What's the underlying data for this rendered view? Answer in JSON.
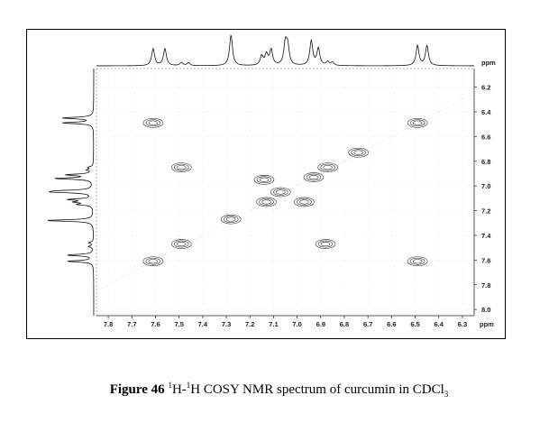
{
  "chart_data": {
    "type": "scatter",
    "subtype": "2D COSY contour plot",
    "x_unit": "ppm",
    "y_unit": "ppm",
    "xlim": [
      7.85,
      6.25
    ],
    "ylim": [
      6.05,
      8.05
    ],
    "x_ticks": [
      "7.8",
      "7.7",
      "7.6",
      "7.5",
      "7.4",
      "7.3",
      "7.2",
      "7.1",
      "7.0",
      "6.9",
      "6.8",
      "6.7",
      "6.6",
      "6.5",
      "6.4",
      "6.3"
    ],
    "y_ticks": [
      "6.2",
      "6.4",
      "6.6",
      "6.8",
      "7.0",
      "7.2",
      "7.4",
      "7.6",
      "7.8",
      "8.0"
    ],
    "cross_peaks": [
      {
        "x": 7.61,
        "y": 6.49
      },
      {
        "x": 6.49,
        "y": 6.49
      },
      {
        "x": 7.49,
        "y": 6.85
      },
      {
        "x": 6.74,
        "y": 6.73
      },
      {
        "x": 6.87,
        "y": 6.85
      },
      {
        "x": 6.93,
        "y": 6.93
      },
      {
        "x": 7.14,
        "y": 6.95
      },
      {
        "x": 7.07,
        "y": 7.05
      },
      {
        "x": 7.13,
        "y": 7.13
      },
      {
        "x": 6.97,
        "y": 7.13
      },
      {
        "x": 7.28,
        "y": 7.27
      },
      {
        "x": 7.49,
        "y": 7.47
      },
      {
        "x": 6.88,
        "y": 7.47
      },
      {
        "x": 7.61,
        "y": 7.61
      },
      {
        "x": 6.49,
        "y": 7.61
      }
    ],
    "projection_peaks": [
      {
        "ppm": 7.61,
        "intensity": 0.55
      },
      {
        "ppm": 7.56,
        "intensity": 0.55
      },
      {
        "ppm": 7.49,
        "intensity": 0.1
      },
      {
        "ppm": 7.46,
        "intensity": 0.1
      },
      {
        "ppm": 7.28,
        "intensity": 1.0
      },
      {
        "ppm": 7.15,
        "intensity": 0.3
      },
      {
        "ppm": 7.13,
        "intensity": 0.35
      },
      {
        "ppm": 7.11,
        "intensity": 0.5
      },
      {
        "ppm": 7.05,
        "intensity": 0.7
      },
      {
        "ppm": 7.04,
        "intensity": 0.6
      },
      {
        "ppm": 6.94,
        "intensity": 0.8
      },
      {
        "ppm": 6.91,
        "intensity": 0.55
      },
      {
        "ppm": 6.87,
        "intensity": 0.12
      },
      {
        "ppm": 6.85,
        "intensity": 0.1
      },
      {
        "ppm": 6.49,
        "intensity": 0.65
      },
      {
        "ppm": 6.45,
        "intensity": 0.65
      }
    ]
  },
  "caption": {
    "label": "Figure 46",
    "sup1": "1",
    "h1": "H-",
    "sup2": "1",
    "text": "H COSY NMR spectrum of curcumin in CDCl",
    "sub": "3"
  }
}
